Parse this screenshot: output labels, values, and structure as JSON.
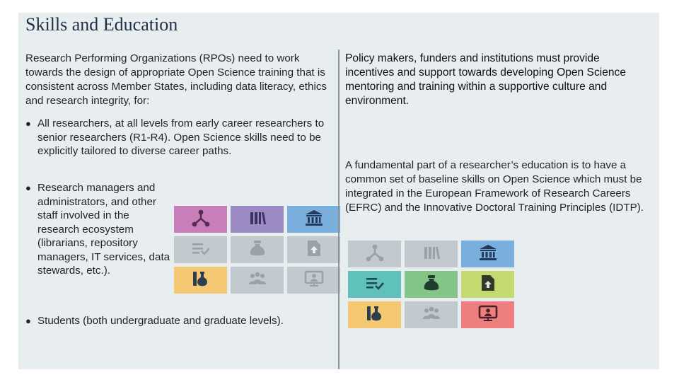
{
  "slide": {
    "title": "Skills and Education",
    "left": {
      "intro": "Research Performing Organizations (RPOs) need to work towards the design of appropriate Open Science training that is consistent across Member States, including data literacy, ethics and research integrity, for:",
      "bullets": [
        "All researchers, at all levels from early career researchers to senior researchers (R1-R4). Open Science skills need to be explicitly tailored to diverse career paths.",
        "Research managers and administrators, and other staff involved in the research ecosystem (librarians, repository managers, IT services, data stewards, etc.).",
        "Students (both undergraduate and graduate levels)."
      ]
    },
    "right": {
      "paragraph1": "Policy makers, funders and institutions must provide incentives and support towards developing Open Science mentoring and training within a supportive culture and environment.",
      "paragraph2": "A fundamental part of a researcher’s education is to have a common set of baseline skills on Open Science which must be integrated in the European Framework of Research Careers (EFRC) and the Innovative Doctoral Training Principles (IDTP)."
    },
    "icon_grids": {
      "left": [
        {
          "icon": "network-icon",
          "bg": "#c87fb9",
          "fg": "#5a2a55"
        },
        {
          "icon": "books-icon",
          "bg": "#9b8ac3",
          "fg": "#3d3360"
        },
        {
          "icon": "institution-icon",
          "bg": "#7aaedc",
          "fg": "#213a5c"
        },
        {
          "icon": "checklist-icon",
          "bg": "#c3cacf",
          "fg": "#9aa2a9"
        },
        {
          "icon": "money-bag-icon",
          "bg": "#c3cacf",
          "fg": "#9aa2a9"
        },
        {
          "icon": "document-upload-icon",
          "bg": "#c3cacf",
          "fg": "#9aa2a9"
        },
        {
          "icon": "lab-flask-icon",
          "bg": "#f5c873",
          "fg": "#2c3e50"
        },
        {
          "icon": "people-group-icon",
          "bg": "#c3cacf",
          "fg": "#9aa2a9"
        },
        {
          "icon": "presentation-screen-icon",
          "bg": "#c3cacf",
          "fg": "#9aa2a9"
        }
      ],
      "right": [
        {
          "icon": "network-icon",
          "bg": "#c3cacf",
          "fg": "#9aa2a9"
        },
        {
          "icon": "books-icon",
          "bg": "#c3cacf",
          "fg": "#9aa2a9"
        },
        {
          "icon": "institution-icon",
          "bg": "#7aaedc",
          "fg": "#213a5c"
        },
        {
          "icon": "checklist-icon",
          "bg": "#5fc1ba",
          "fg": "#1d4a52"
        },
        {
          "icon": "money-bag-icon",
          "bg": "#84c486",
          "fg": "#1f3c2c"
        },
        {
          "icon": "document-upload-icon",
          "bg": "#c5d971",
          "fg": "#2e3a25"
        },
        {
          "icon": "lab-flask-icon",
          "bg": "#f5c873",
          "fg": "#2c3e50"
        },
        {
          "icon": "people-group-icon",
          "bg": "#c3cacf",
          "fg": "#9aa2a9"
        },
        {
          "icon": "presentation-screen-icon",
          "bg": "#ef7e7e",
          "fg": "#4a1f25"
        }
      ]
    }
  }
}
